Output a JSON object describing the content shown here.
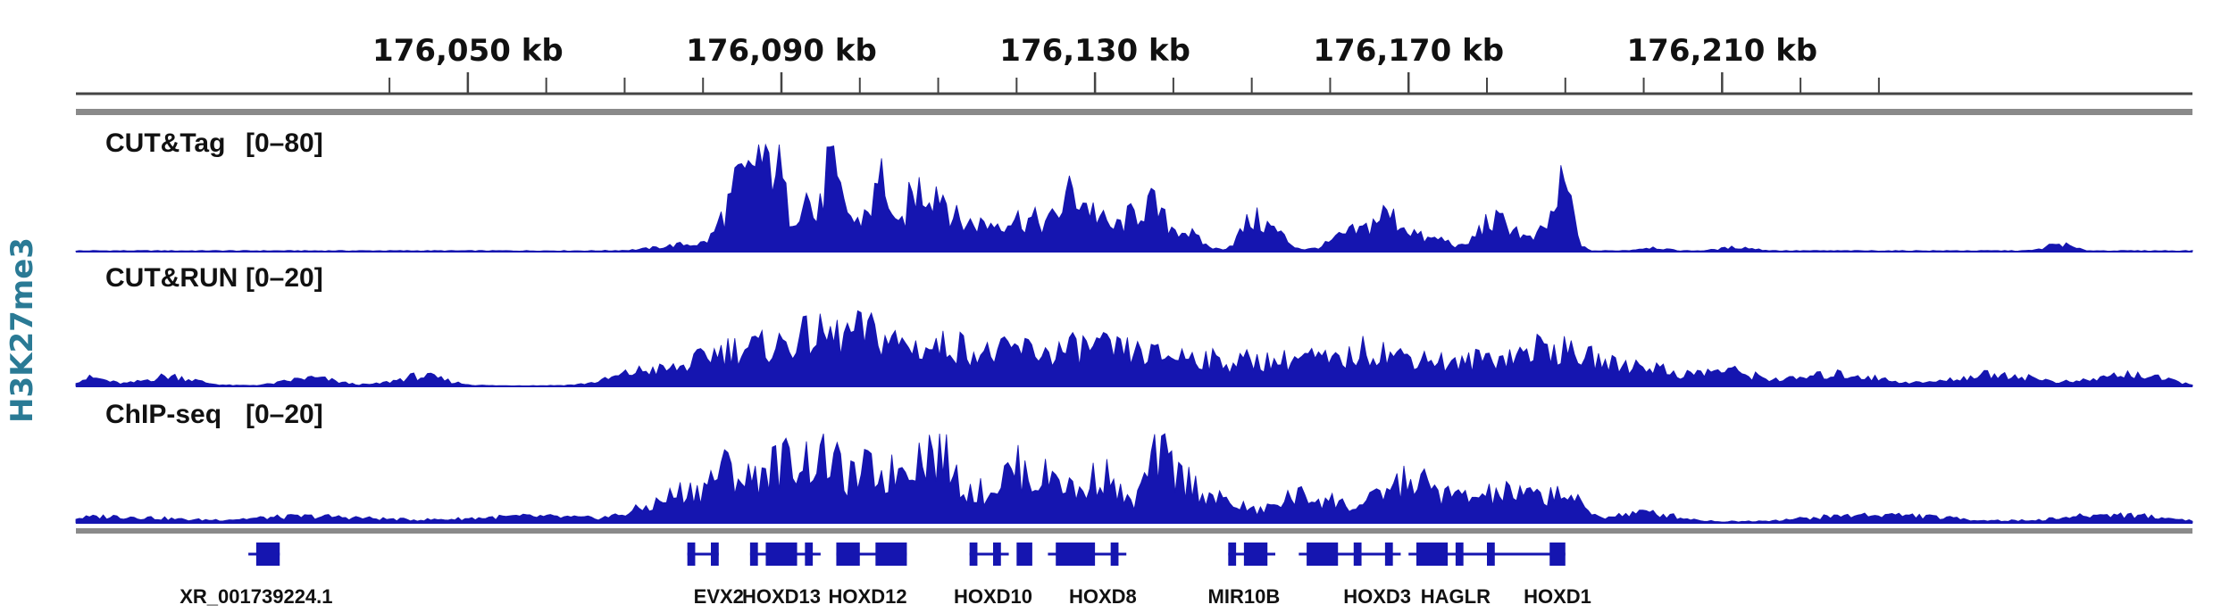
{
  "assay_label": "H3K27me3",
  "colors": {
    "signal": "#1515b0",
    "gene": "#1515b0",
    "axis": "#555555",
    "side_label": "#2a7a95"
  },
  "chart_data": {
    "type": "area",
    "units": "kb",
    "x_range": [
      176000,
      176270
    ],
    "ruler": {
      "labels": [
        {
          "pos": 176050,
          "text": "176,050 kb"
        },
        {
          "pos": 176090,
          "text": "176,090 kb"
        },
        {
          "pos": 176130,
          "text": "176,130 kb"
        },
        {
          "pos": 176170,
          "text": "176,170 kb"
        },
        {
          "pos": 176210,
          "text": "176,210 kb"
        }
      ],
      "ticks": [
        176040,
        176050,
        176060,
        176070,
        176080,
        176090,
        176100,
        176110,
        176120,
        176130,
        176140,
        176150,
        176160,
        176170,
        176180,
        176190,
        176200,
        176210,
        176220,
        176230
      ]
    },
    "tracks": [
      {
        "name": "CUT&Tag",
        "range": "[0–80]",
        "ylim": [
          0,
          80
        ],
        "peaks": [
          {
            "x": 176079,
            "h": 6,
            "w": 4
          },
          {
            "x": 176083,
            "h": 28,
            "w": 1.2
          },
          {
            "x": 176085,
            "h": 50,
            "w": 1.0
          },
          {
            "x": 176087,
            "h": 75,
            "w": 0.8
          },
          {
            "x": 176089,
            "h": 55,
            "w": 0.8
          },
          {
            "x": 176090,
            "h": 38,
            "w": 1.2
          },
          {
            "x": 176093,
            "h": 50,
            "w": 1.0
          },
          {
            "x": 176096,
            "h": 70,
            "w": 0.8
          },
          {
            "x": 176098,
            "h": 40,
            "w": 1.0
          },
          {
            "x": 176101,
            "h": 35,
            "w": 1.0
          },
          {
            "x": 176103,
            "h": 62,
            "w": 0.8
          },
          {
            "x": 176107,
            "h": 48,
            "w": 1.4
          },
          {
            "x": 176110,
            "h": 48,
            "w": 1.4
          },
          {
            "x": 176114,
            "h": 22,
            "w": 2.2
          },
          {
            "x": 176119,
            "h": 24,
            "w": 2.2
          },
          {
            "x": 176123,
            "h": 20,
            "w": 2.0
          },
          {
            "x": 176127,
            "h": 45,
            "w": 1.5
          },
          {
            "x": 176130,
            "h": 28,
            "w": 1.5
          },
          {
            "x": 176134,
            "h": 22,
            "w": 1.5
          },
          {
            "x": 176137,
            "h": 36,
            "w": 1.5
          },
          {
            "x": 176141,
            "h": 18,
            "w": 2.0
          },
          {
            "x": 176150,
            "h": 25,
            "w": 1.5
          },
          {
            "x": 176153,
            "h": 15,
            "w": 1.5
          },
          {
            "x": 176163,
            "h": 16,
            "w": 2.5
          },
          {
            "x": 176167,
            "h": 26,
            "w": 1.5
          },
          {
            "x": 176170,
            "h": 16,
            "w": 1.5
          },
          {
            "x": 176174,
            "h": 10,
            "w": 1.5
          },
          {
            "x": 176180,
            "h": 22,
            "w": 1.5
          },
          {
            "x": 176183,
            "h": 20,
            "w": 1.5
          },
          {
            "x": 176190,
            "h": 48,
            "w": 1.0
          },
          {
            "x": 176188,
            "h": 20,
            "w": 1.5
          },
          {
            "x": 176201,
            "h": 3,
            "w": 1.5
          },
          {
            "x": 176212,
            "h": 3,
            "w": 2
          },
          {
            "x": 176253,
            "h": 6,
            "w": 1.5
          }
        ]
      },
      {
        "name": "CUT&RUN",
        "range": "[0–20]",
        "ylim": [
          0,
          20
        ],
        "peaks": [
          {
            "x": 176002,
            "h": 2,
            "w": 2
          },
          {
            "x": 176012,
            "h": 2.5,
            "w": 3
          },
          {
            "x": 176030,
            "h": 2,
            "w": 3
          },
          {
            "x": 176044,
            "h": 2.5,
            "w": 3
          },
          {
            "x": 176073,
            "h": 4,
            "w": 4
          },
          {
            "x": 176081,
            "h": 5,
            "w": 3
          },
          {
            "x": 176087,
            "h": 9,
            "w": 4
          },
          {
            "x": 176094,
            "h": 10,
            "w": 3
          },
          {
            "x": 176100,
            "h": 10,
            "w": 3
          },
          {
            "x": 176106,
            "h": 9,
            "w": 4
          },
          {
            "x": 176113,
            "h": 8,
            "w": 3
          },
          {
            "x": 176120,
            "h": 8,
            "w": 3
          },
          {
            "x": 176128,
            "h": 9,
            "w": 4
          },
          {
            "x": 176136,
            "h": 7,
            "w": 4
          },
          {
            "x": 176143,
            "h": 6,
            "w": 3
          },
          {
            "x": 176150,
            "h": 6,
            "w": 3
          },
          {
            "x": 176157,
            "h": 7,
            "w": 3
          },
          {
            "x": 176165,
            "h": 9,
            "w": 3
          },
          {
            "x": 176172,
            "h": 7,
            "w": 3
          },
          {
            "x": 176180,
            "h": 7,
            "w": 3
          },
          {
            "x": 176187,
            "h": 9,
            "w": 3
          },
          {
            "x": 176193,
            "h": 6,
            "w": 3
          },
          {
            "x": 176200,
            "h": 5,
            "w": 3
          },
          {
            "x": 176210,
            "h": 4,
            "w": 4
          },
          {
            "x": 176225,
            "h": 3,
            "w": 5
          },
          {
            "x": 176245,
            "h": 3,
            "w": 5
          },
          {
            "x": 176262,
            "h": 3,
            "w": 4
          }
        ]
      },
      {
        "name": "ChIP-seq",
        "range": "[0–20]",
        "ylim": [
          0,
          20
        ],
        "peaks": [
          {
            "x": 176005,
            "h": 1.5,
            "w": 6
          },
          {
            "x": 176030,
            "h": 1.5,
            "w": 8
          },
          {
            "x": 176058,
            "h": 1.5,
            "w": 8
          },
          {
            "x": 176073,
            "h": 3,
            "w": 3
          },
          {
            "x": 176078,
            "h": 7,
            "w": 2.5
          },
          {
            "x": 176083,
            "h": 13,
            "w": 2.0
          },
          {
            "x": 176088,
            "h": 12,
            "w": 2.0
          },
          {
            "x": 176092,
            "h": 14,
            "w": 2.0
          },
          {
            "x": 176096,
            "h": 15,
            "w": 1.8
          },
          {
            "x": 176101,
            "h": 13,
            "w": 2.0
          },
          {
            "x": 176106,
            "h": 14,
            "w": 2.0
          },
          {
            "x": 176110,
            "h": 16,
            "w": 2.0
          },
          {
            "x": 176115,
            "h": 7,
            "w": 2.5
          },
          {
            "x": 176120,
            "h": 13,
            "w": 2.0
          },
          {
            "x": 176125,
            "h": 12,
            "w": 2.0
          },
          {
            "x": 176131,
            "h": 13,
            "w": 2.0
          },
          {
            "x": 176138,
            "h": 16,
            "w": 1.8
          },
          {
            "x": 176142,
            "h": 9,
            "w": 2.0
          },
          {
            "x": 176147,
            "h": 5,
            "w": 2.5
          },
          {
            "x": 176155,
            "h": 6,
            "w": 2.5
          },
          {
            "x": 176160,
            "h": 5,
            "w": 2.5
          },
          {
            "x": 176167,
            "h": 6,
            "w": 2.5
          },
          {
            "x": 176171,
            "h": 8,
            "w": 2.5
          },
          {
            "x": 176176,
            "h": 5,
            "w": 3
          },
          {
            "x": 176182,
            "h": 6,
            "w": 3
          },
          {
            "x": 176187,
            "h": 4,
            "w": 3
          },
          {
            "x": 176190,
            "h": 5,
            "w": 2.0
          },
          {
            "x": 176200,
            "h": 2.5,
            "w": 4
          },
          {
            "x": 176230,
            "h": 2,
            "w": 8
          },
          {
            "x": 176260,
            "h": 2,
            "w": 6
          }
        ]
      }
    ],
    "genes": [
      {
        "name": "XR_001739224.1",
        "label_x": 176023,
        "start": 176022,
        "end": 176026,
        "exons": [
          [
            176023,
            176026
          ]
        ]
      },
      {
        "name": "EVX2",
        "label_x": 176082,
        "start": 176078,
        "end": 176082,
        "exons": [
          [
            176078,
            176079
          ],
          [
            176081,
            176082
          ]
        ]
      },
      {
        "name": "HOXD13",
        "label_x": 176090,
        "start": 176086,
        "end": 176095,
        "exons": [
          [
            176086,
            176087
          ],
          [
            176088,
            176092
          ],
          [
            176093,
            176094
          ]
        ]
      },
      {
        "name": "HOXD12",
        "label_x": 176101,
        "start": 176097,
        "end": 176106,
        "exons": [
          [
            176097,
            176100
          ],
          [
            176102,
            176106
          ]
        ]
      },
      {
        "name": "HOXD10",
        "label_x": 176117,
        "start": 176114,
        "end": 176119,
        "exons": [
          [
            176114,
            176115
          ],
          [
            176117,
            176118
          ],
          [
            176120,
            176122
          ]
        ]
      },
      {
        "name": "HOXD8",
        "label_x": 176131,
        "start": 176124,
        "end": 176134,
        "exons": [
          [
            176125,
            176130
          ],
          [
            176132,
            176133
          ]
        ]
      },
      {
        "name": "MIR10B",
        "label_x": 176149,
        "start": 176147,
        "end": 176153,
        "exons": [
          [
            176147,
            176148
          ],
          [
            176149,
            176152
          ]
        ]
      },
      {
        "name": "HOXD3",
        "label_x": 176166,
        "start": 176156,
        "end": 176169,
        "exons": [
          [
            176157,
            176161
          ],
          [
            176163,
            176164
          ],
          [
            176167,
            176168
          ]
        ]
      },
      {
        "name": "HAGLR",
        "label_x": 176176,
        "start": 176170,
        "end": 176189,
        "exons": [
          [
            176171,
            176175
          ],
          [
            176176,
            176177
          ],
          [
            176180,
            176181
          ]
        ]
      },
      {
        "name": "HOXD1",
        "label_x": 176189,
        "start": 176188,
        "end": 176190,
        "exons": [
          [
            176188,
            176190
          ]
        ]
      }
    ]
  }
}
